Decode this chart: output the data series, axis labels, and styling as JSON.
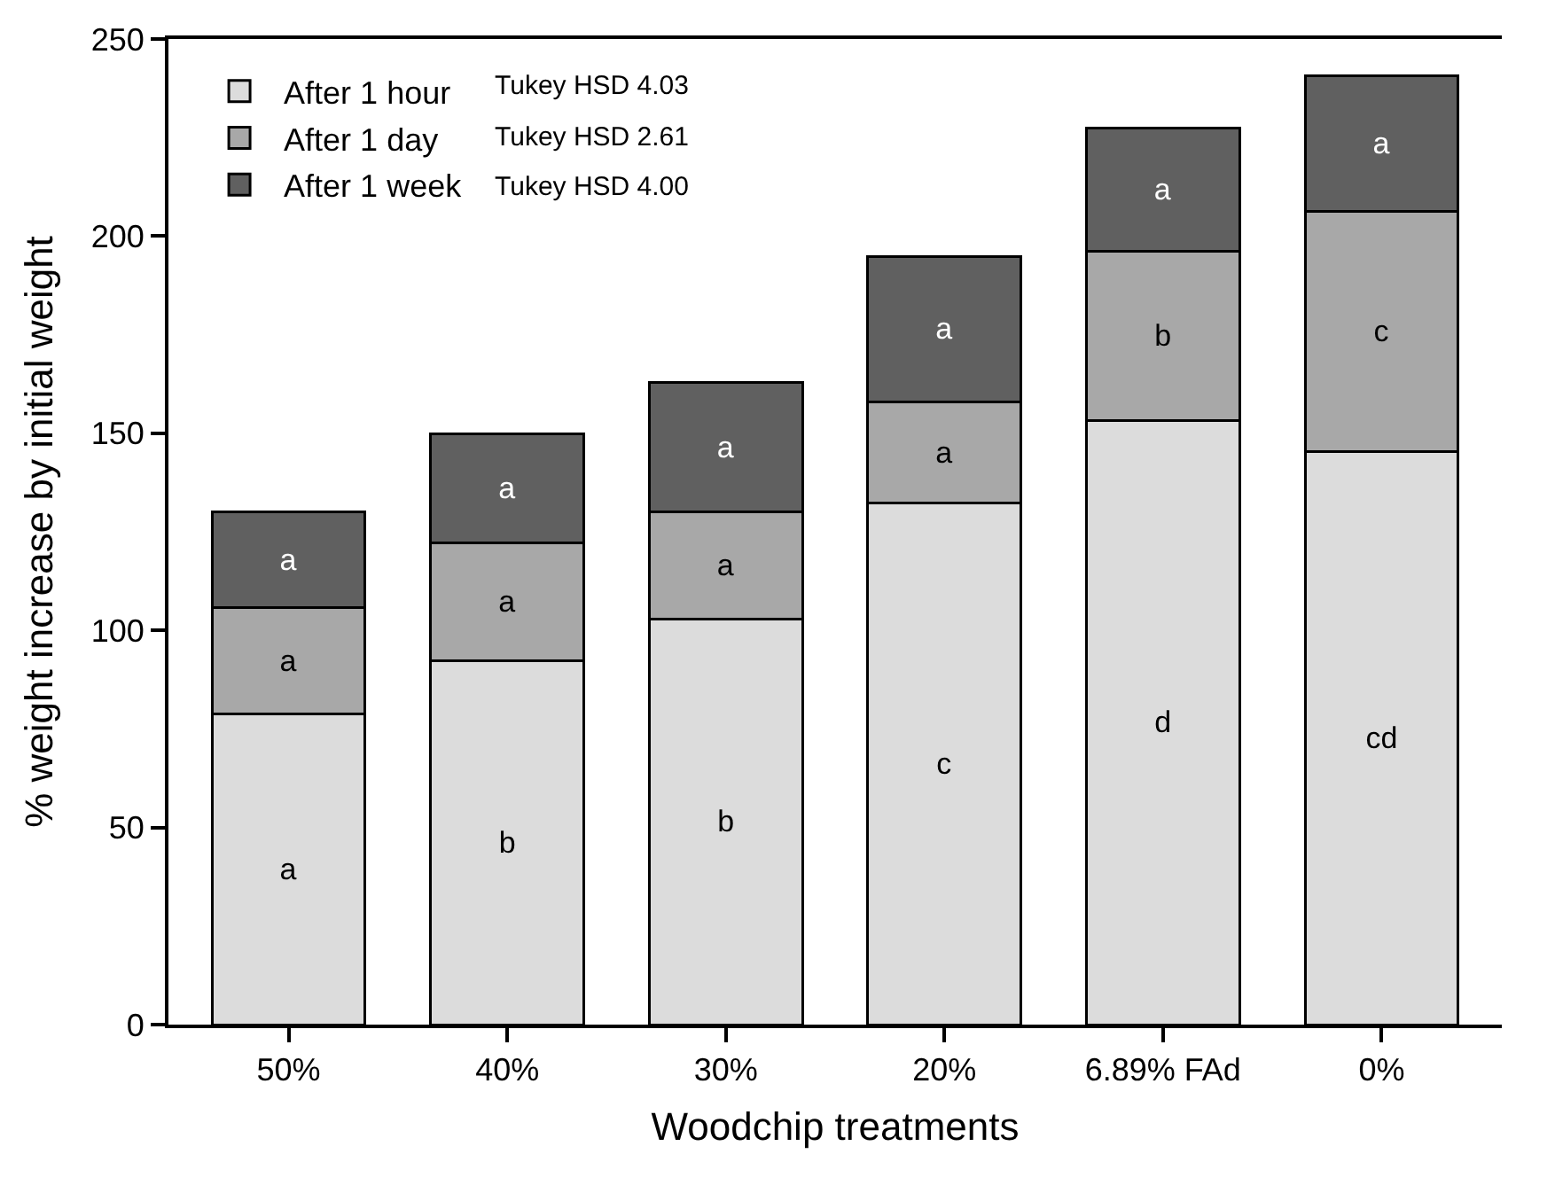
{
  "chart_data": {
    "type": "bar",
    "stacked": true,
    "xlabel": "Woodchip treatments",
    "ylabel": "% weight increase by initial weight",
    "categories": [
      "50%",
      "40%",
      "30%",
      "20%",
      "6.89% FAd",
      "0%"
    ],
    "series": [
      {
        "name": "After 1 hour",
        "color": "#dcdcdc",
        "values": [
          78.7,
          92.4,
          102.8,
          132.2,
          153.2,
          145.4
        ],
        "value_labels": [
          "a",
          "b",
          "b",
          "c",
          "d",
          "cd"
        ]
      },
      {
        "name": "After 1 day",
        "color": "#a8a8a8",
        "values": [
          27.1,
          29.7,
          27.2,
          25.8,
          43.0,
          60.9
        ],
        "value_labels": [
          "a",
          "a",
          "a",
          "a",
          "b",
          "c"
        ]
      },
      {
        "name": "After 1 week",
        "color": "#606060",
        "values": [
          24.2,
          27.8,
          32.8,
          36.8,
          31.3,
          34.3
        ],
        "value_labels": [
          "a",
          "a",
          "a",
          "a",
          "a",
          "a"
        ]
      }
    ],
    "ylim": [
      0,
      250
    ],
    "yticks": [
      0,
      50,
      100,
      150,
      200,
      250
    ],
    "grid": false,
    "legend": "top left",
    "annotations": [
      "Tukey HSD 4.03",
      "Tukey HSD 2.61",
      "Tukey HSD 4.00"
    ]
  }
}
